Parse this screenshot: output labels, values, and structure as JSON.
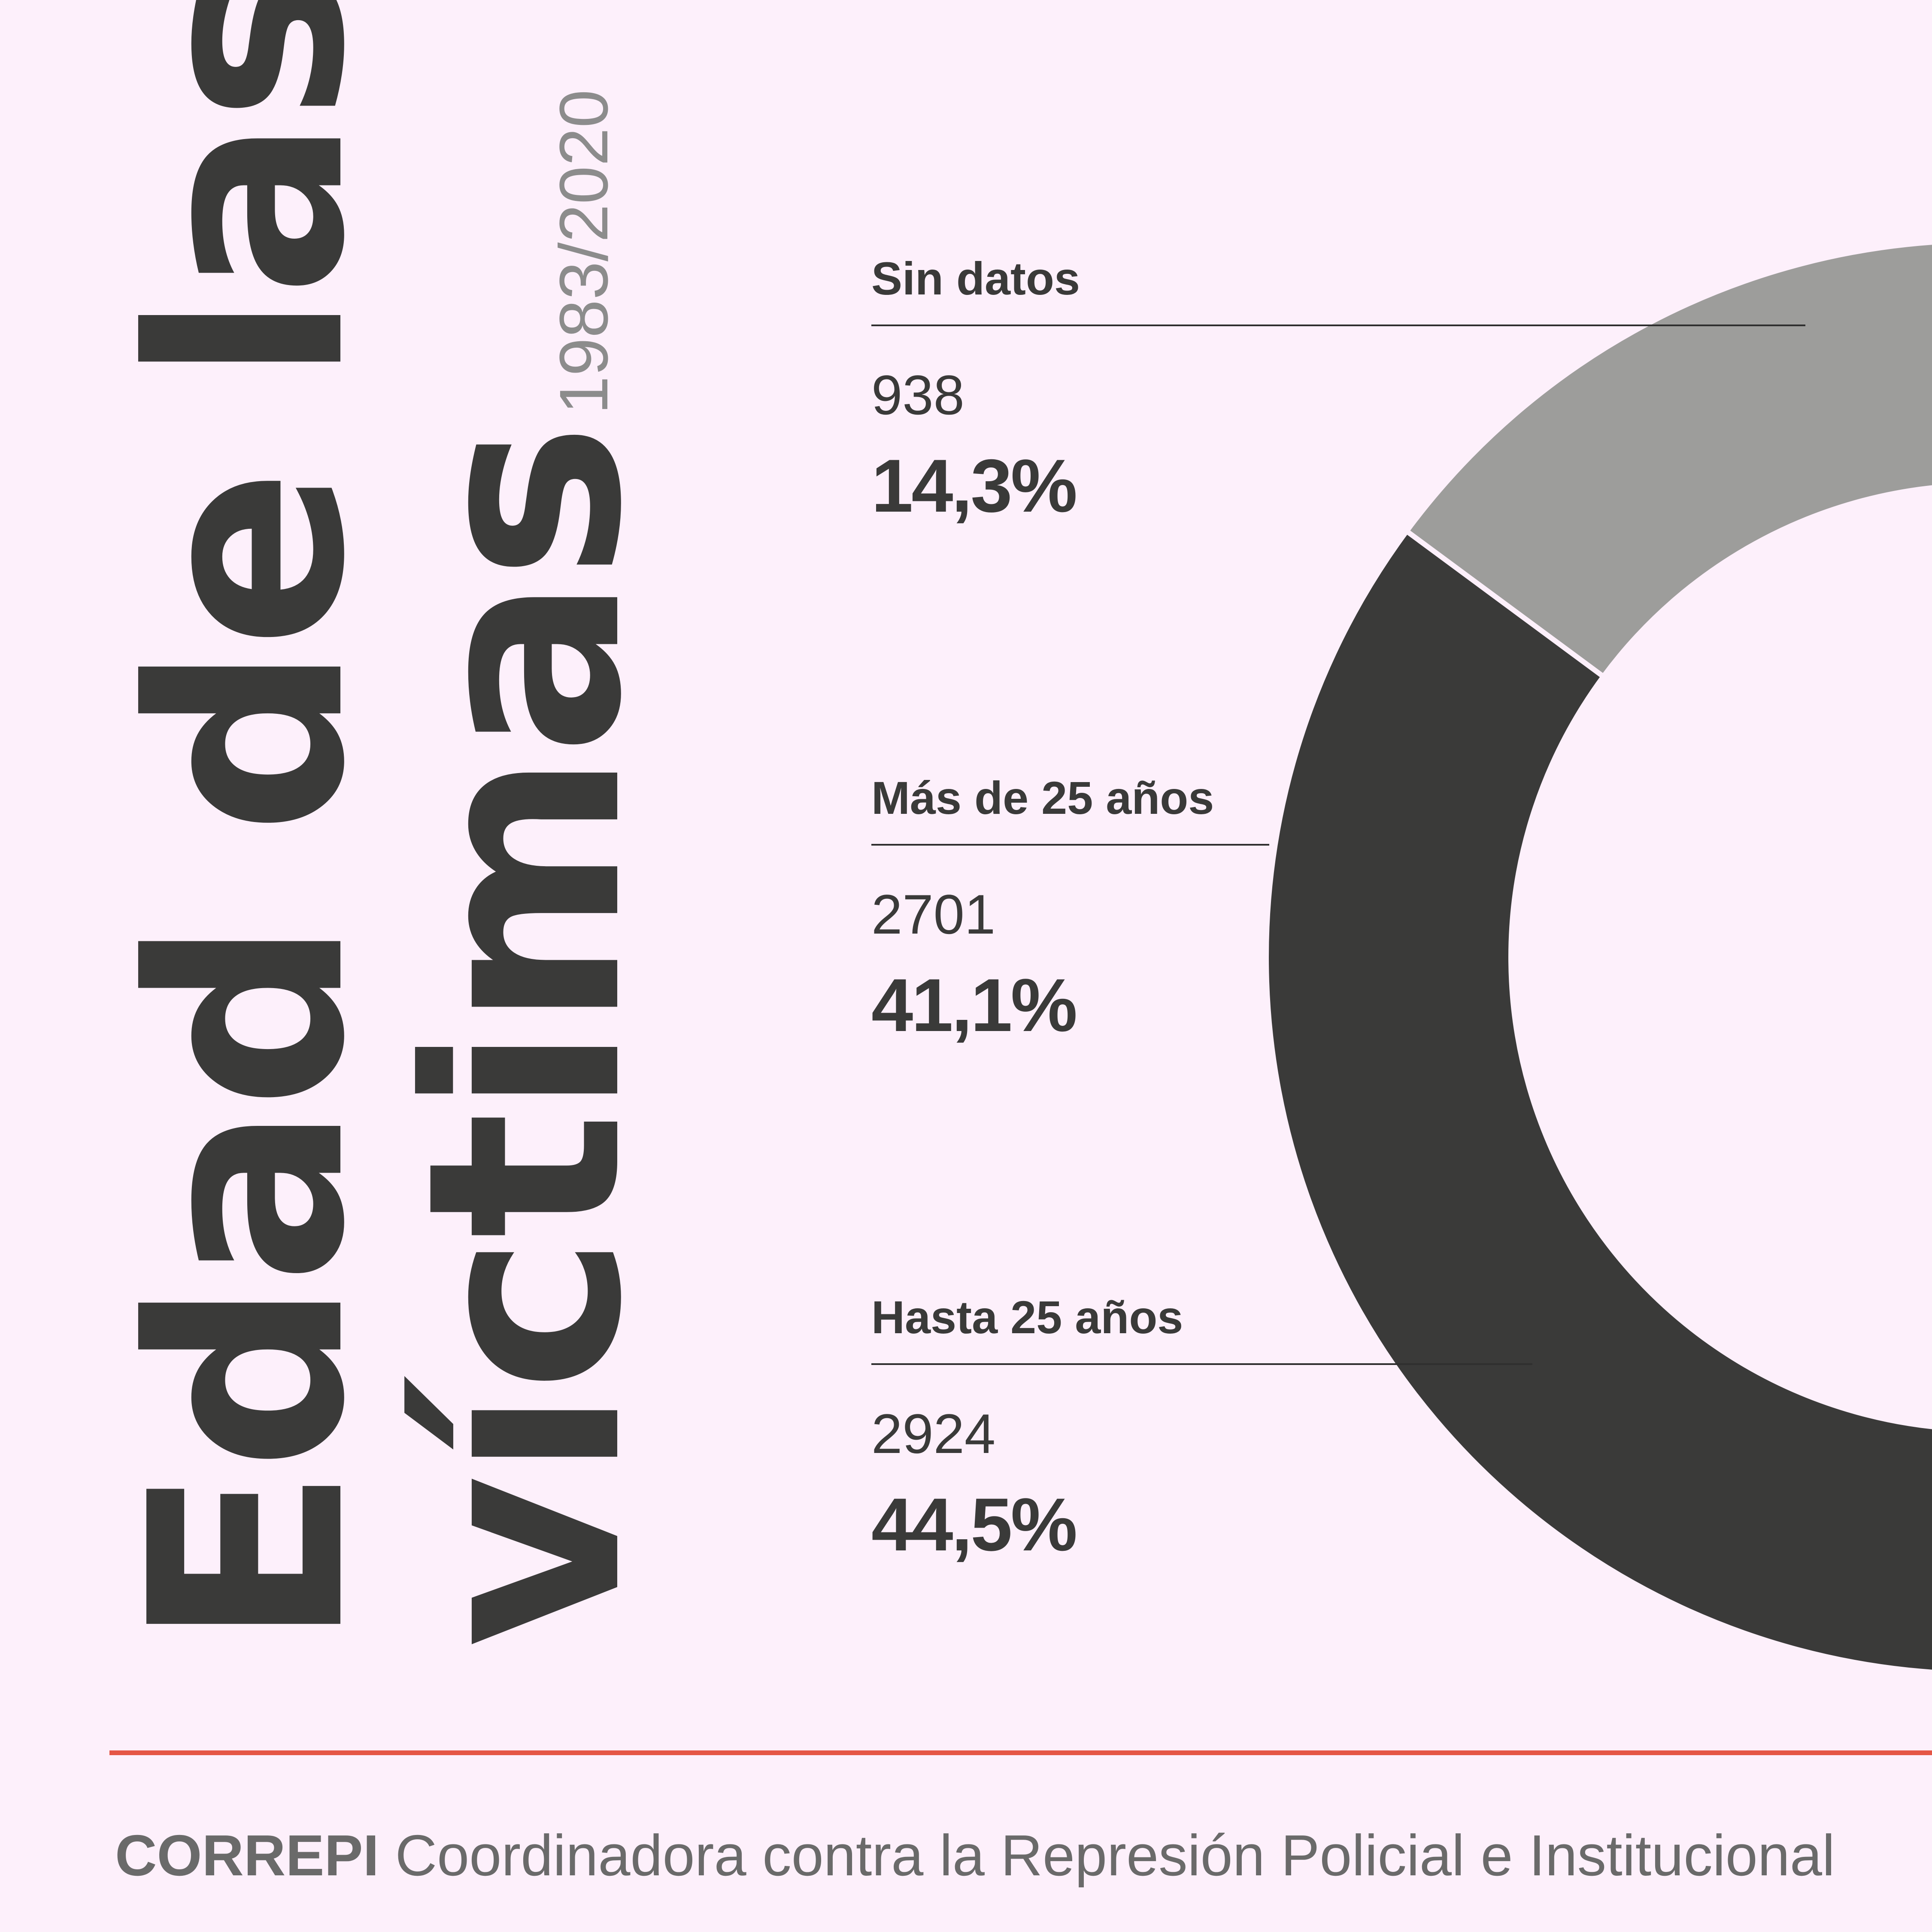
{
  "header": {
    "title_line1": "Edad de las",
    "title_line2": "víctimas",
    "subtitle": "1983/2020"
  },
  "chart_data": {
    "type": "pie",
    "style": "donut",
    "categories": [
      "Sin datos",
      "Más de 25 años",
      "Hasta 25 años"
    ],
    "counts": [
      938,
      2701,
      2924
    ],
    "values": [
      14.3,
      41.1,
      44.5
    ],
    "value_labels": [
      "14,3%",
      "41,1%",
      "44,5%"
    ],
    "colors": [
      "#9d9d9b",
      "#3a3a39",
      "#e55646"
    ]
  },
  "labels": [
    {
      "category": "Sin datos",
      "count": "938",
      "percent": "14,3%"
    },
    {
      "category": "Más de 25 años",
      "count": "2701",
      "percent": "41,1%"
    },
    {
      "category": "Hasta 25 años",
      "count": "2924",
      "percent": "44,5%"
    }
  ],
  "footer": {
    "org": "CORREPI",
    "description": "Coordinadora contra la Represión Policial e Institucional"
  },
  "colors": {
    "background": "#fdf0fb",
    "text": "#3a3a39",
    "accent": "#e55646"
  }
}
